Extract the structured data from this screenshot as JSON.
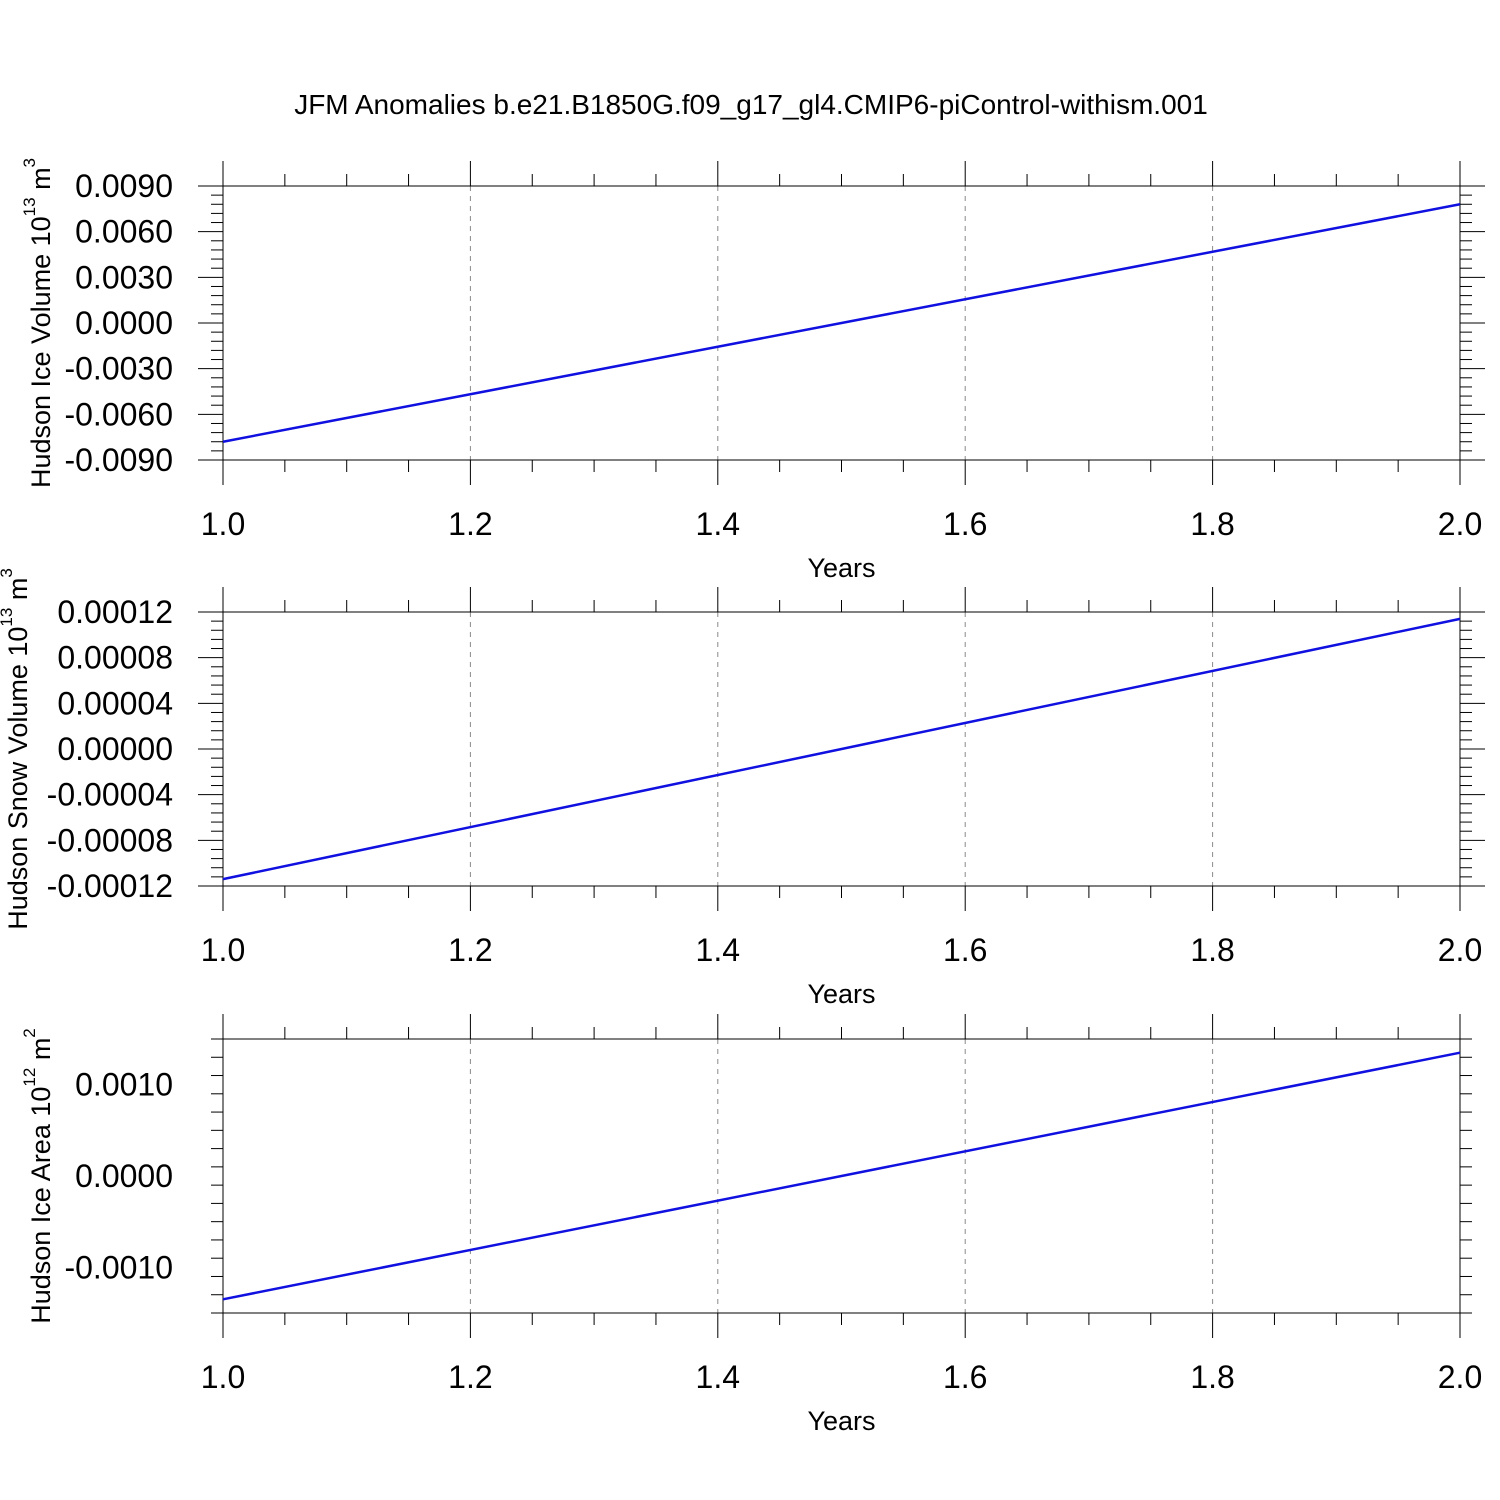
{
  "figure": {
    "title": "JFM Anomalies b.e21.B1850G.f09_g17_gl4.CMIP6-piControl-withism.001"
  },
  "chart_data": [
    {
      "type": "line",
      "xlabel": "Years",
      "ylabel": {
        "text": "Hudson Ice Volume 10",
        "sup": "13",
        "unit": " m",
        "unit_sup": "3"
      },
      "xlim": [
        1.0,
        2.0
      ],
      "ylim": [
        -0.009,
        0.009
      ],
      "xticks": [
        "1.0",
        "1.2",
        "1.4",
        "1.6",
        "1.8",
        "2.0"
      ],
      "yticks": [
        "0.0090",
        "0.0060",
        "0.0030",
        "0.0000",
        "-0.0030",
        "-0.0060",
        "-0.0090"
      ],
      "grid": "x-dashed",
      "series": [
        {
          "color": "#1010e0",
          "x": [
            1.0,
            2.0
          ],
          "y": [
            -0.0078,
            0.0078
          ]
        }
      ]
    },
    {
      "type": "line",
      "xlabel": "Years",
      "ylabel": {
        "text": "Hudson Snow Volume 10",
        "sup": "13",
        "unit": " m",
        "unit_sup": "3"
      },
      "xlim": [
        1.0,
        2.0
      ],
      "ylim": [
        -0.00012,
        0.00012
      ],
      "xticks": [
        "1.0",
        "1.2",
        "1.4",
        "1.6",
        "1.8",
        "2.0"
      ],
      "yticks": [
        "0.00012",
        "0.00008",
        "0.00004",
        "0.00000",
        "-0.00004",
        "-0.00008",
        "-0.00012"
      ],
      "grid": "x-dashed",
      "series": [
        {
          "color": "#1010e0",
          "x": [
            1.0,
            2.0
          ],
          "y": [
            -0.000114,
            0.000114
          ]
        }
      ]
    },
    {
      "type": "line",
      "xlabel": "Years",
      "ylabel": {
        "text": "Hudson Ice Area 10",
        "sup": "12",
        "unit": " m",
        "unit_sup": "2"
      },
      "xlim": [
        1.0,
        2.0
      ],
      "ylim": [
        -0.0015,
        0.0015
      ],
      "xticks": [
        "1.0",
        "1.2",
        "1.4",
        "1.6",
        "1.8",
        "2.0"
      ],
      "yticks": [
        "0.0010",
        "0.0000",
        "-0.0010"
      ],
      "grid": "x-dashed",
      "series": [
        {
          "color": "#1010e0",
          "x": [
            1.0,
            2.0
          ],
          "y": [
            -0.00135,
            0.00135
          ]
        }
      ]
    }
  ]
}
